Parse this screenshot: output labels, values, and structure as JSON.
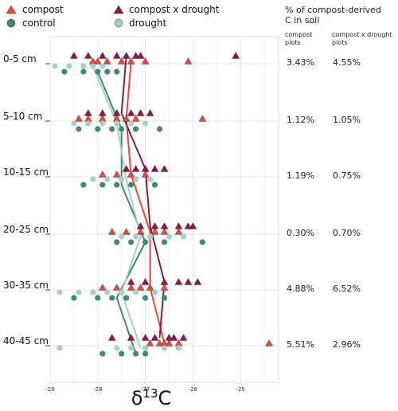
{
  "chart_data": {
    "type": "scatter",
    "xlabel": "δ¹³C",
    "ylabel": "",
    "xlim": [
      -29.0,
      -24.2
    ],
    "xticks": [
      -29,
      -28,
      -27,
      -26,
      -25
    ],
    "grid": true,
    "legend_position": "top-left",
    "depths": [
      "0-5 cm",
      "5-10 cm",
      "10-15 cm",
      "20-25 cm",
      "30-35 cm",
      "40-45 cm"
    ],
    "series": [
      {
        "name": "compost",
        "marker": "triangle",
        "color": "#e8473b",
        "mean_x": [
          -27.3,
          -27.4,
          -27.3,
          -26.9,
          -26.9,
          -26.6
        ],
        "points": [
          [
            -28.1,
            -28.0,
            -27.8,
            -27.5,
            -27.3,
            -27.0,
            -26.1
          ],
          [
            -28.4,
            -28.2,
            -27.9,
            -27.6,
            -27.4,
            -27.2,
            -25.8
          ],
          [
            -27.9,
            -27.6,
            -27.3,
            -27.0
          ],
          [
            -27.7,
            -27.4,
            -27.1,
            -26.8,
            -26.6,
            -26.3
          ],
          [
            -27.9,
            -27.6,
            -27.3,
            -27.1,
            -26.9,
            -26.6
          ],
          [
            -26.9,
            -26.7,
            -26.6,
            -26.5,
            -26.3,
            -24.4
          ]
        ]
      },
      {
        "name": "compost x drought",
        "marker": "triangle",
        "color": "#8b1a4a",
        "mean_x": [
          -27.4,
          -27.5,
          -27.0,
          -26.9,
          -26.6,
          -26.7
        ],
        "points": [
          [
            -28.5,
            -28.2,
            -27.9,
            -27.6,
            -27.4,
            -27.2,
            -27.1,
            -25.1
          ],
          [
            -28.2,
            -27.9,
            -27.6,
            -27.3,
            -27.1,
            -26.9
          ],
          [
            -27.4,
            -27.2,
            -27.0,
            -26.8,
            -26.6
          ],
          [
            -27.1,
            -26.8,
            -26.6,
            -26.3,
            -26.1,
            -26.0
          ],
          [
            -27.3,
            -27.0,
            -26.6,
            -26.3,
            -26.1,
            -25.9
          ],
          [
            -27.7,
            -27.3,
            -27.0,
            -26.8,
            -26.5,
            -26.4,
            -26.2
          ]
        ]
      },
      {
        "name": "control",
        "marker": "circle",
        "color": "#3f8a6b",
        "mean_x": [
          -28.0,
          -27.5,
          -27.5,
          -27.0,
          -27.6,
          -27.2
        ],
        "points": [
          [
            -28.7,
            -28.3,
            -28.0,
            -27.8,
            -27.6
          ],
          [
            -28.4,
            -28.0,
            -27.7,
            -27.5,
            -27.2,
            -26.7
          ],
          [
            -28.3,
            -27.9,
            -27.6,
            -27.3,
            -26.8
          ],
          [
            -27.6,
            -27.3,
            -27.0,
            -26.6,
            -25.8
          ],
          [
            -28.5,
            -28.0,
            -27.7,
            -27.4,
            -27.0,
            -26.6
          ],
          [
            -27.9,
            -27.5,
            -27.2,
            -27.0
          ]
        ]
      },
      {
        "name": "drought",
        "marker": "circle",
        "color": "#a9cfc4",
        "mean_x": [
          -28.1,
          -27.6,
          -27.4,
          -27.1,
          -27.5,
          -27.1
        ],
        "points": [
          [
            -28.9,
            -28.6,
            -28.3,
            -28.1,
            -27.9
          ],
          [
            -28.5,
            -28.2,
            -27.9,
            -27.6,
            -27.3,
            -27.0
          ],
          [
            -28.1,
            -27.8,
            -27.5,
            -27.2,
            -26.9
          ],
          [
            -27.5,
            -27.2,
            -26.9,
            -26.5,
            -26.2
          ],
          [
            -28.8,
            -28.4,
            -28.1,
            -27.8,
            -27.5,
            -27.2,
            -26.8
          ],
          [
            -28.8,
            -27.6,
            -27.3,
            -27.0,
            -26.6,
            -26.3
          ]
        ]
      }
    ],
    "side_table": {
      "title_line1": "% of compost-derived",
      "title_line2": "C in soil",
      "col1_line1": "compost",
      "col1_line2": "plots",
      "col2_line1": "compost x drought",
      "col2_line2": "plots",
      "compost": [
        "3.43%",
        "1.12%",
        "1.19%",
        "0.30%",
        "4.88%",
        "5.51%"
      ],
      "compost_x_drought": [
        "4.55%",
        "1.05%",
        "0.75%",
        "0.70%",
        "6.52%",
        "2.96%"
      ]
    }
  }
}
